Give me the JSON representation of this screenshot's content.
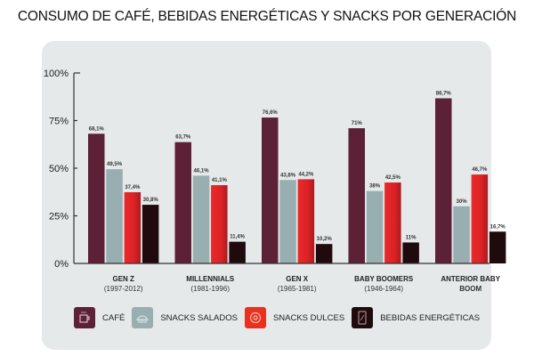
{
  "chart_data": {
    "type": "bar",
    "title": "CONSUMO DE CAFÉ, BEBIDAS ENERGÉTICAS Y SNACKS POR GENERACIÓN",
    "xlabel": "",
    "ylabel": "",
    "ylim": [
      0,
      100
    ],
    "yticks": [
      "0%",
      "25%",
      "50%",
      "75%",
      "100%"
    ],
    "ytick_values": [
      0,
      25,
      50,
      75,
      100
    ],
    "grid": false,
    "legend_position": "bottom",
    "categories": [
      {
        "name": "GEN Z",
        "years": "(1997-2012)"
      },
      {
        "name": "MILLENNIALS",
        "years": "(1981-1996)"
      },
      {
        "name": "GEN X",
        "years": "(1965-1981)"
      },
      {
        "name": "BABY BOOMERS",
        "years": "(1946-1964)"
      },
      {
        "name": "ANTERIOR BABY",
        "years": "BOOM"
      }
    ],
    "series": [
      {
        "name": "CAFÉ",
        "color": "#5c2136",
        "icon": "coffee-cup-icon",
        "values": [
          68.1,
          63.7,
          76.6,
          71,
          86.7
        ],
        "labels": [
          "68,1%",
          "63,7%",
          "76,6%",
          "71%",
          "86,7%"
        ]
      },
      {
        "name": "SNACKS SALADOS",
        "color": "#98aeb1",
        "icon": "sandwich-icon",
        "values": [
          49.5,
          46.1,
          43.8,
          38,
          30
        ],
        "labels": [
          "49,5%",
          "46,1%",
          "43,8%",
          "38%",
          "30%"
        ]
      },
      {
        "name": "SNACKS DULCES",
        "color": "#e0252a",
        "icon": "donut-icon",
        "values": [
          37.4,
          41.1,
          44.2,
          42.5,
          46.7
        ],
        "labels": [
          "37,4%",
          "41,1%",
          "44,2%",
          "42,5%",
          "46,7%"
        ]
      },
      {
        "name": "BEBIDAS ENERGÉTICAS",
        "color": "#1f0a0e",
        "icon": "energy-can-icon",
        "values": [
          30.8,
          11.4,
          10.2,
          11,
          16.7
        ],
        "labels": [
          "30,8%",
          "11,4%",
          "10,2%",
          "11%",
          "16,7%"
        ]
      }
    ]
  }
}
